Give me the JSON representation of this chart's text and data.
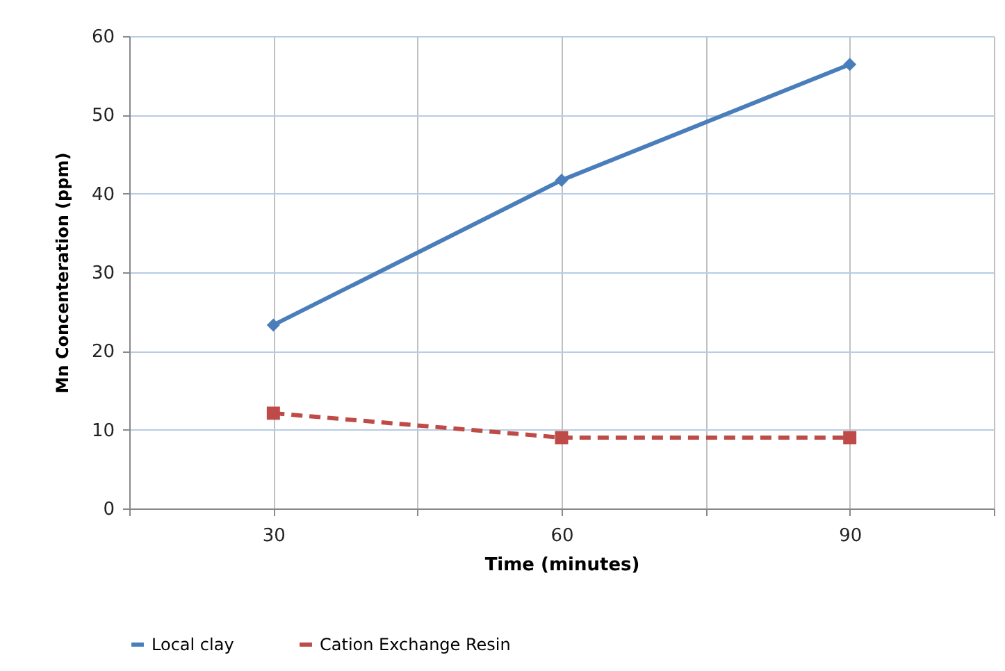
{
  "chart_data": {
    "type": "line",
    "xlabel": "Time (minutes)",
    "ylabel": "Mn Concenteration (ppm)",
    "x": [
      30,
      60,
      90
    ],
    "series": [
      {
        "name": "Local clay",
        "color": "#4a7ebb",
        "values": [
          23.3,
          41.7,
          56.4
        ],
        "marker": "diamond",
        "line_style": "solid"
      },
      {
        "name": "Cation Exchange Resin",
        "color": "#be4b48",
        "values": [
          12.1,
          9,
          9
        ],
        "marker": "square",
        "line_style": "dashed"
      }
    ],
    "xlim": [
      15,
      105
    ],
    "xticks": [
      {
        "value": 15,
        "label": null
      },
      30,
      {
        "value": 45,
        "label": null
      },
      60,
      {
        "value": 75,
        "label": null
      },
      90,
      {
        "value": 105,
        "label": null
      }
    ],
    "ylim": [
      0,
      60
    ],
    "yticks": [
      0,
      10,
      20,
      30,
      40,
      50,
      60
    ],
    "grid": true,
    "legend": "bottom"
  }
}
